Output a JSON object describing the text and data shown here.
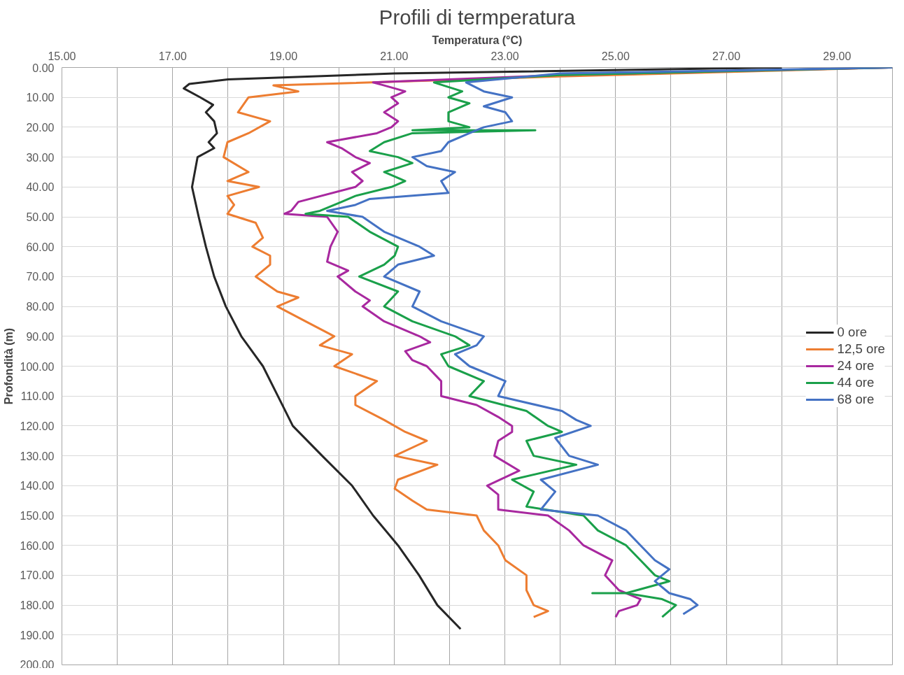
{
  "chart_data": {
    "type": "line",
    "title": "Profili di termperatura",
    "xlabel": "Temperatura (°C)",
    "ylabel": "Profondità (m)",
    "xlim": [
      15,
      30
    ],
    "ylim": [
      200,
      0
    ],
    "xticks": [
      {
        "value": 15,
        "label": "15.00"
      },
      {
        "value": 16,
        "label": null
      },
      {
        "value": 17,
        "label": "17.00"
      },
      {
        "value": 18,
        "label": null
      },
      {
        "value": 19,
        "label": "19.00"
      },
      {
        "value": 20,
        "label": null
      },
      {
        "value": 21,
        "label": "21.00"
      },
      {
        "value": 22,
        "label": null
      },
      {
        "value": 23,
        "label": "23.00"
      },
      {
        "value": 24,
        "label": null
      },
      {
        "value": 25,
        "label": "25.00"
      },
      {
        "value": 26,
        "label": null
      },
      {
        "value": 27,
        "label": "27.00"
      },
      {
        "value": 28,
        "label": null
      },
      {
        "value": 29,
        "label": "29.00"
      }
    ],
    "yticks": [
      {
        "value": 0,
        "label": "0.00"
      },
      {
        "value": 10,
        "label": "10.00"
      },
      {
        "value": 20,
        "label": "20.00"
      },
      {
        "value": 30,
        "label": "30.00"
      },
      {
        "value": 40,
        "label": "40.00"
      },
      {
        "value": 50,
        "label": "50.00"
      },
      {
        "value": 60,
        "label": "60.00"
      },
      {
        "value": 70,
        "label": "70.00"
      },
      {
        "value": 80,
        "label": "80.00"
      },
      {
        "value": 90,
        "label": "90.00"
      },
      {
        "value": 100,
        "label": "100.00"
      },
      {
        "value": 110,
        "label": "110.00"
      },
      {
        "value": 120,
        "label": "120.00"
      },
      {
        "value": 130,
        "label": "130.00"
      },
      {
        "value": 140,
        "label": "140.00"
      },
      {
        "value": 150,
        "label": "150.00"
      },
      {
        "value": 160,
        "label": "160.00"
      },
      {
        "value": 170,
        "label": "170.00"
      },
      {
        "value": 180,
        "label": "180.00"
      },
      {
        "value": 190,
        "label": "190.00"
      },
      {
        "value": 200,
        "label": "200.00"
      }
    ],
    "grid": true,
    "legend": "right",
    "line_style": "solid",
    "marker": "none",
    "series": [
      {
        "name": "0 ore",
        "color": "#262626",
        "x": [
          28.0,
          21.0,
          18.0,
          17.3,
          17.2,
          17.5,
          17.73,
          17.6,
          17.75,
          17.8,
          17.65,
          17.75,
          17.45,
          17.35,
          17.47,
          17.6,
          17.75,
          17.96,
          18.24,
          18.63,
          18.9,
          19.17,
          19.7,
          20.24,
          20.62,
          21.07,
          21.45,
          21.78,
          22.2
        ],
        "values": [
          0,
          2,
          4,
          5.5,
          7,
          10,
          12.5,
          15,
          18,
          22,
          25,
          27,
          30,
          40,
          50,
          60,
          70,
          80,
          90,
          100,
          110,
          120,
          130,
          140,
          150,
          160,
          170,
          180,
          188
        ]
      },
      {
        "name": "12,5 ore",
        "color": "#ed7d31",
        "x": [
          30,
          24,
          18.82,
          19.27,
          18.37,
          18.18,
          18.76,
          18.37,
          17.99,
          17.92,
          18.37,
          17.99,
          18.56,
          17.99,
          18.11,
          17.99,
          18.5,
          18.63,
          18.44,
          18.76,
          18.76,
          18.5,
          18.89,
          19.27,
          18.89,
          19.4,
          19.92,
          19.66,
          20.24,
          19.92,
          20.69,
          20.3,
          20.3,
          20.82,
          21.2,
          21.59,
          21.01,
          21.78,
          21.07,
          21.01,
          21.33,
          21.59,
          22.49,
          22.62,
          22.88,
          23.01,
          23.39,
          23.39,
          23.52,
          23.78,
          23.52
        ],
        "values": [
          0,
          3,
          6,
          8,
          10,
          15,
          18,
          22,
          25,
          30,
          35,
          38,
          40,
          43,
          46,
          49,
          52,
          57,
          60,
          63,
          66,
          70,
          75,
          77,
          80,
          85,
          90,
          93,
          96,
          100,
          105,
          110,
          113,
          118,
          122,
          125,
          130,
          133,
          138,
          141,
          145,
          148,
          150,
          155,
          160,
          165,
          170,
          175,
          180,
          182,
          184
        ]
      },
      {
        "name": "24 ore",
        "color": "#a8289f",
        "x": [
          30,
          24,
          20.62,
          20.82,
          21.2,
          20.95,
          21.07,
          20.82,
          21.07,
          20.95,
          20.69,
          19.79,
          20.05,
          20.3,
          20.56,
          20.24,
          20.43,
          20.3,
          19.27,
          19.14,
          19.02,
          19.79,
          19.98,
          19.85,
          19.79,
          20.17,
          19.98,
          20.3,
          20.56,
          20.43,
          20.82,
          21.46,
          21.65,
          21.2,
          21.33,
          21.59,
          21.85,
          21.85,
          22.49,
          22.88,
          23.13,
          23.13,
          22.88,
          22.81,
          23.26,
          22.68,
          22.88,
          22.88,
          23.78,
          24.16,
          24.42,
          24.94,
          24.81,
          25.06,
          25.45,
          25.39,
          25.06,
          25.0
        ],
        "values": [
          0,
          2.5,
          5,
          6,
          8,
          10,
          12,
          15,
          18,
          20,
          22,
          25,
          27,
          30,
          32,
          35,
          38,
          40,
          45,
          48,
          49,
          50,
          55,
          60,
          65,
          68,
          70,
          75,
          78,
          80,
          85,
          90,
          92,
          95,
          98,
          100,
          105,
          110,
          113,
          117,
          120,
          122,
          125,
          130,
          135,
          140,
          143,
          148,
          150,
          155,
          160,
          165,
          170,
          175,
          178,
          180,
          182,
          184
        ]
      },
      {
        "name": "44 ore",
        "color": "#1aa04a",
        "x": [
          30,
          24,
          21.72,
          22.23,
          21.98,
          22.36,
          21.98,
          21.98,
          22.36,
          21.33,
          23.55,
          21.33,
          20.82,
          20.56,
          21.07,
          21.33,
          20.82,
          21.2,
          20.95,
          20.3,
          20.05,
          19.66,
          19.4,
          20.17,
          20.56,
          21.07,
          21.01,
          20.82,
          20.37,
          21.07,
          20.82,
          21.33,
          22.1,
          22.36,
          21.85,
          21.98,
          22.62,
          22.36,
          23.39,
          23.78,
          24.03,
          23.39,
          23.52,
          24.29,
          23.13,
          23.52,
          23.39,
          24.42,
          24.68,
          25.19,
          25.45,
          25.71,
          25.97,
          25.19,
          24.58,
          25.19,
          25.84,
          26.09,
          25.84
        ],
        "values": [
          0,
          2.5,
          5,
          8,
          10,
          12,
          15,
          18,
          20,
          21,
          21,
          22,
          25,
          28,
          30,
          32,
          35,
          38,
          40,
          43,
          45,
          48,
          49,
          50,
          55,
          60,
          63,
          66,
          70,
          75,
          80,
          85,
          90,
          93,
          96,
          100,
          105,
          110,
          115,
          120,
          122,
          125,
          130,
          133,
          138,
          142,
          147,
          150,
          155,
          160,
          165,
          170,
          172,
          176,
          176,
          176,
          178,
          180,
          184
        ]
      },
      {
        "name": "68 ore",
        "color": "#4472c4",
        "x": [
          30,
          24,
          22.3,
          22.62,
          23.13,
          22.62,
          23.01,
          23.13,
          22.62,
          22.36,
          21.98,
          21.85,
          21.33,
          21.59,
          22.1,
          21.85,
          21.98,
          20.56,
          20.3,
          19.79,
          20.43,
          20.82,
          21.46,
          21.72,
          21.07,
          20.82,
          21.46,
          21.33,
          21.85,
          22.62,
          22.49,
          22.1,
          22.36,
          23.01,
          22.88,
          24.03,
          24.29,
          24.55,
          23.91,
          24.16,
          24.68,
          23.65,
          23.91,
          23.65,
          24.68,
          25.19,
          25.45,
          25.71,
          25.97,
          25.71,
          25.97,
          26.35,
          26.48,
          26.22
        ],
        "values": [
          0,
          2,
          5,
          8,
          10,
          13,
          15,
          18,
          20,
          22,
          25,
          28,
          30,
          33,
          35,
          38,
          42,
          44,
          46,
          48,
          50,
          55,
          60,
          63,
          66,
          70,
          75,
          80,
          85,
          90,
          93,
          96,
          100,
          105,
          110,
          115,
          118,
          120,
          124,
          130,
          133,
          138,
          142,
          148,
          150,
          155,
          160,
          165,
          168,
          172,
          176,
          178,
          180,
          183
        ]
      }
    ]
  }
}
